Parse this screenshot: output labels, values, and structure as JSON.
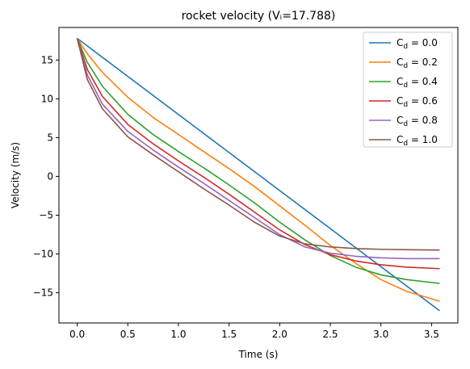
{
  "chart_data": {
    "type": "line",
    "title": "rocket velocity (Vᵢ=17.788)",
    "xlabel": "Time (s)",
    "ylabel": "Velocity (m/s)",
    "xlim": [
      -0.18,
      3.76
    ],
    "ylim": [
      -18.9,
      19.2
    ],
    "xticks": [
      0.0,
      0.5,
      1.0,
      1.5,
      2.0,
      2.5,
      3.0,
      3.5
    ],
    "xtick_labels": [
      "0.0",
      "0.5",
      "1.0",
      "1.5",
      "2.0",
      "2.5",
      "3.0",
      "3.5"
    ],
    "yticks": [
      -15,
      -10,
      -5,
      0,
      5,
      10,
      15
    ],
    "ytick_labels": [
      "−15",
      "−10",
      "−5",
      "0",
      "5",
      "10",
      "15"
    ],
    "legend_placement": "top-right",
    "grid": false,
    "series": [
      {
        "name": "C_d = 0.0",
        "legend_main": "C",
        "legend_sub": "d",
        "legend_value": " = 0.0",
        "color": "#1f77b4",
        "x": [
          0.0,
          0.5,
          1.0,
          1.5,
          2.0,
          2.5,
          3.0,
          3.58
        ],
        "y": [
          17.79,
          12.89,
          7.98,
          3.08,
          -1.83,
          -6.73,
          -11.64,
          -17.33
        ]
      },
      {
        "name": "C_d = 0.2",
        "legend_main": "C",
        "legend_sub": "d",
        "legend_value": " = 0.2",
        "color": "#ff7f0e",
        "x": [
          0.0,
          0.1,
          0.25,
          0.5,
          0.75,
          1.0,
          1.25,
          1.5,
          1.75,
          2.0,
          2.25,
          2.5,
          2.75,
          3.0,
          3.25,
          3.58
        ],
        "y": [
          17.79,
          15.8,
          13.4,
          10.2,
          7.6,
          5.4,
          3.2,
          1.0,
          -1.3,
          -3.8,
          -6.3,
          -8.9,
          -11.2,
          -13.3,
          -14.8,
          -16.1
        ]
      },
      {
        "name": "C_d = 0.4",
        "legend_main": "C",
        "legend_sub": "d",
        "legend_value": " = 0.4",
        "color": "#2ca02c",
        "x": [
          0.0,
          0.1,
          0.25,
          0.5,
          0.75,
          1.0,
          1.25,
          1.5,
          1.75,
          2.0,
          2.25,
          2.5,
          2.75,
          3.0,
          3.25,
          3.58
        ],
        "y": [
          17.79,
          14.7,
          11.6,
          8.0,
          5.4,
          3.2,
          1.1,
          -1.1,
          -3.4,
          -5.9,
          -8.2,
          -10.2,
          -11.7,
          -12.7,
          -13.3,
          -13.8
        ]
      },
      {
        "name": "C_d = 0.6",
        "legend_main": "C",
        "legend_sub": "d",
        "legend_value": " = 0.6",
        "color": "#d62728",
        "x": [
          0.0,
          0.1,
          0.25,
          0.5,
          0.75,
          1.0,
          1.25,
          1.5,
          1.75,
          2.0,
          2.25,
          2.5,
          2.75,
          3.0,
          3.25,
          3.58
        ],
        "y": [
          17.79,
          13.8,
          10.3,
          6.7,
          4.2,
          2.0,
          -0.1,
          -2.3,
          -4.6,
          -6.9,
          -8.8,
          -10.1,
          -10.9,
          -11.4,
          -11.7,
          -11.9
        ]
      },
      {
        "name": "C_d = 0.8",
        "legend_main": "C",
        "legend_sub": "d",
        "legend_value": " = 0.8",
        "color": "#9467bd",
        "x": [
          0.0,
          0.1,
          0.25,
          0.5,
          0.75,
          1.0,
          1.25,
          1.5,
          1.75,
          2.0,
          2.25,
          2.5,
          2.75,
          3.0,
          3.25,
          3.58
        ],
        "y": [
          17.79,
          13.1,
          9.3,
          5.8,
          3.4,
          1.2,
          -0.9,
          -3.1,
          -5.3,
          -7.5,
          -9.1,
          -9.9,
          -10.3,
          -10.5,
          -10.6,
          -10.6
        ]
      },
      {
        "name": "C_d = 1.0",
        "legend_main": "C",
        "legend_sub": "d",
        "legend_value": " = 1.0",
        "color": "#8c564b",
        "x": [
          0.0,
          0.1,
          0.25,
          0.5,
          0.75,
          1.0,
          1.25,
          1.5,
          1.75,
          2.0,
          2.25,
          2.5,
          2.75,
          3.0,
          3.25,
          3.58
        ],
        "y": [
          17.79,
          12.5,
          8.7,
          5.1,
          2.8,
          0.6,
          -1.6,
          -3.7,
          -5.9,
          -7.7,
          -8.7,
          -9.1,
          -9.3,
          -9.4,
          -9.45,
          -9.5
        ]
      }
    ]
  }
}
